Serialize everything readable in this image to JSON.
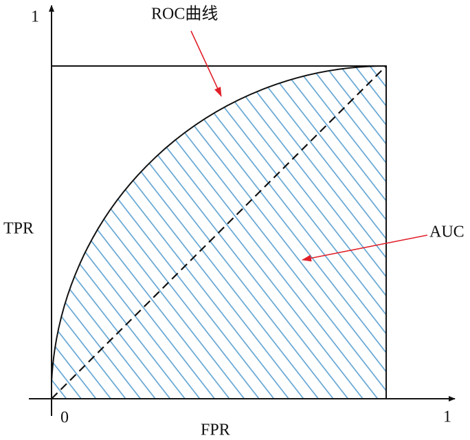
{
  "axes": {
    "y_max": "1",
    "x_max": "1",
    "origin": "0",
    "y_label": "TPR",
    "x_label": "FPR"
  },
  "annotations": {
    "curve": "ROC曲线",
    "area": "AUC"
  }
}
